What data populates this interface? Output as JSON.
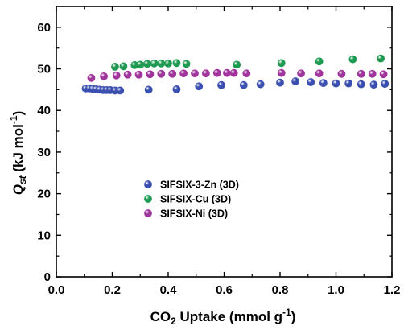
{
  "chart_data": {
    "type": "scatter",
    "xlabel": {
      "main": "CO",
      "sub": "2",
      "rest": " Uptake (mmol g",
      "sup": "-1",
      "end": ")"
    },
    "ylabel": {
      "main": "Q",
      "sub": "st",
      "rest": " (kJ mol",
      "sup": "-1",
      "end": ")"
    },
    "xlim": [
      0.0,
      1.2
    ],
    "ylim": [
      0,
      65
    ],
    "x_ticks": [
      "0.0",
      "0.2",
      "0.4",
      "0.6",
      "0.8",
      "1.0",
      "1.2"
    ],
    "y_ticks": [
      "0",
      "10",
      "20",
      "30",
      "40",
      "50",
      "60"
    ],
    "legend_position": "center-left",
    "grid": false,
    "series": [
      {
        "name": "SIFSIX-3-Zn (3D)",
        "color": "#3b4fb0",
        "points": [
          [
            0.105,
            45.3
          ],
          [
            0.118,
            45.3
          ],
          [
            0.13,
            45.2
          ],
          [
            0.142,
            45.1
          ],
          [
            0.155,
            45.0
          ],
          [
            0.168,
            44.9
          ],
          [
            0.18,
            44.9
          ],
          [
            0.193,
            44.9
          ],
          [
            0.21,
            44.8
          ],
          [
            0.228,
            44.8
          ],
          [
            0.33,
            45.0
          ],
          [
            0.43,
            45.1
          ],
          [
            0.51,
            45.8
          ],
          [
            0.59,
            46.1
          ],
          [
            0.67,
            46.1
          ],
          [
            0.73,
            46.3
          ],
          [
            0.8,
            46.7
          ],
          [
            0.855,
            47.0
          ],
          [
            0.91,
            46.8
          ],
          [
            0.955,
            46.6
          ],
          [
            1.0,
            46.5
          ],
          [
            1.045,
            46.5
          ],
          [
            1.09,
            46.3
          ],
          [
            1.135,
            46.2
          ],
          [
            1.175,
            46.4
          ]
        ]
      },
      {
        "name": "SIFSIX-Cu (3D)",
        "color": "#1f9a52",
        "points": [
          [
            0.21,
            50.5
          ],
          [
            0.24,
            50.6
          ],
          [
            0.28,
            50.9
          ],
          [
            0.3,
            51.0
          ],
          [
            0.325,
            51.2
          ],
          [
            0.35,
            51.3
          ],
          [
            0.375,
            51.3
          ],
          [
            0.4,
            51.3
          ],
          [
            0.43,
            51.4
          ],
          [
            0.465,
            51.2
          ],
          [
            0.645,
            51.0
          ],
          [
            0.805,
            51.4
          ],
          [
            0.94,
            51.8
          ],
          [
            1.06,
            52.3
          ],
          [
            1.16,
            52.5
          ]
        ]
      },
      {
        "name": "SIFSIX-Ni (3D)",
        "color": "#a0359c",
        "points": [
          [
            0.125,
            47.8
          ],
          [
            0.17,
            48.2
          ],
          [
            0.215,
            48.4
          ],
          [
            0.255,
            48.6
          ],
          [
            0.295,
            48.6
          ],
          [
            0.335,
            48.7
          ],
          [
            0.375,
            48.8
          ],
          [
            0.415,
            48.8
          ],
          [
            0.455,
            48.9
          ],
          [
            0.495,
            48.9
          ],
          [
            0.535,
            48.9
          ],
          [
            0.575,
            49.0
          ],
          [
            0.61,
            49.0
          ],
          [
            0.635,
            49.0
          ],
          [
            0.68,
            48.9
          ],
          [
            0.805,
            49.0
          ],
          [
            0.875,
            48.9
          ],
          [
            0.94,
            48.9
          ],
          [
            1.02,
            48.8
          ],
          [
            1.09,
            48.8
          ],
          [
            1.13,
            48.8
          ],
          [
            1.17,
            48.7
          ]
        ]
      }
    ]
  }
}
